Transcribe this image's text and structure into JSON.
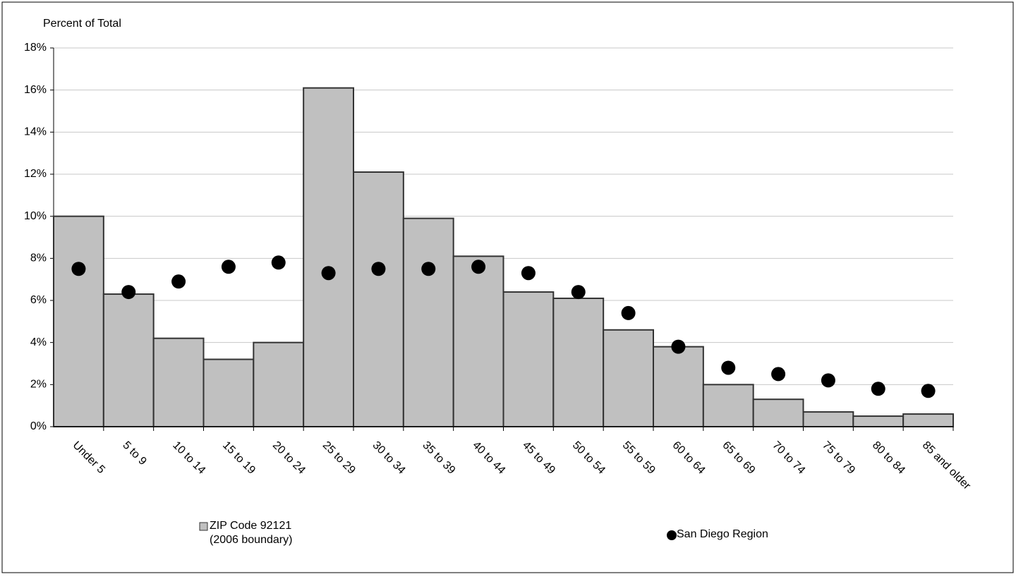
{
  "chart_data": {
    "type": "bar",
    "y_label": "Percent of Total",
    "categories": [
      "Under 5",
      "5 to 9",
      "10 to 14",
      "15 to 19",
      "20 to 24",
      "25 to 29",
      "30 to 34",
      "35 to 39",
      "40 to 44",
      "45 to 49",
      "50 to 54",
      "55 to 59",
      "60 to 64",
      "65 to 69",
      "70 to 74",
      "75 to 79",
      "80 to 84",
      "85 and older"
    ],
    "series": [
      {
        "name": "ZIP Code 92121\n(2006 boundary)",
        "type": "bar",
        "color": "#c0c0c0",
        "values": [
          10.0,
          6.3,
          4.2,
          3.2,
          4.0,
          16.1,
          12.1,
          9.9,
          8.1,
          6.4,
          6.1,
          4.6,
          3.8,
          2.0,
          1.3,
          0.7,
          0.5,
          0.6
        ]
      },
      {
        "name": "San Diego Region",
        "type": "scatter",
        "color": "#000000",
        "values": [
          7.5,
          6.4,
          6.9,
          7.6,
          7.8,
          7.3,
          7.5,
          7.5,
          7.6,
          7.3,
          6.4,
          5.4,
          3.8,
          2.8,
          2.5,
          2.2,
          1.8,
          1.7
        ]
      }
    ],
    "ylim": [
      0,
      18
    ],
    "yticks": [
      {
        "value": 0,
        "label": "0%"
      },
      {
        "value": 2,
        "label": "2%"
      },
      {
        "value": 4,
        "label": "4%"
      },
      {
        "value": 6,
        "label": "6%"
      },
      {
        "value": 8,
        "label": "8%"
      },
      {
        "value": 10,
        "label": "10%"
      },
      {
        "value": 12,
        "label": "12%"
      },
      {
        "value": 14,
        "label": "14%"
      },
      {
        "value": 16,
        "label": "16%"
      },
      {
        "value": 18,
        "label": "18%"
      }
    ],
    "grid": true
  }
}
